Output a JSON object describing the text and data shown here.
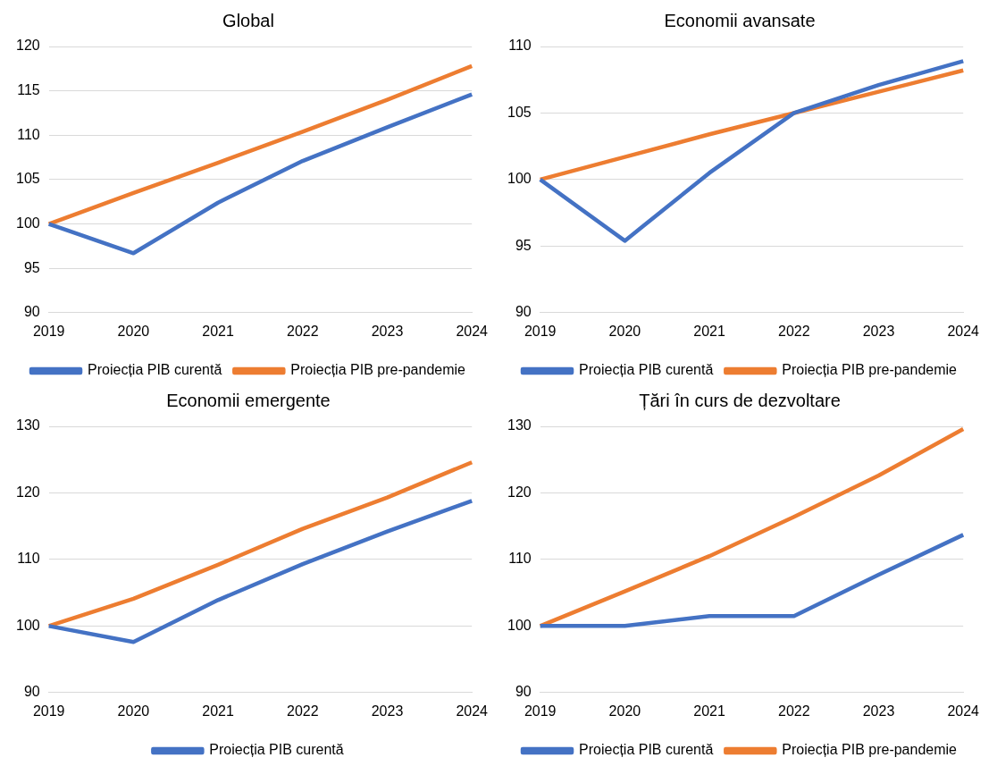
{
  "chart_data": [
    {
      "type": "line",
      "title": "Global",
      "categories": [
        "2019",
        "2020",
        "2021",
        "2022",
        "2023",
        "2024"
      ],
      "ylim": [
        90,
        120
      ],
      "yticks": [
        90,
        95,
        100,
        105,
        110,
        115,
        120
      ],
      "grid": "y",
      "legend": "bottom",
      "series": [
        {
          "name": "Proiecția PIB curentă",
          "color": "#4472c4",
          "values": [
            100,
            96.7,
            102.4,
            107.1,
            110.9,
            114.6
          ]
        },
        {
          "name": "Proiecția PIB pre-pandemie",
          "color": "#ed7d31",
          "values": [
            100,
            103.5,
            106.9,
            110.4,
            114.0,
            117.8
          ]
        }
      ]
    },
    {
      "type": "line",
      "title": "Economii avansate",
      "categories": [
        "2019",
        "2020",
        "2021",
        "2022",
        "2023",
        "2024"
      ],
      "ylim": [
        90,
        110
      ],
      "yticks": [
        90,
        95,
        100,
        105,
        110
      ],
      "grid": "y",
      "legend": "bottom",
      "series": [
        {
          "name": "Proiecția PIB curentă",
          "color": "#4472c4",
          "values": [
            100,
            95.4,
            100.5,
            105.0,
            107.1,
            108.9
          ]
        },
        {
          "name": "Proiecția PIB pre-pandemie",
          "color": "#ed7d31",
          "values": [
            100,
            101.7,
            103.4,
            105.0,
            106.6,
            108.2
          ]
        }
      ]
    },
    {
      "type": "line",
      "title": "Economii emergente",
      "categories": [
        "2019",
        "2020",
        "2021",
        "2022",
        "2023",
        "2024"
      ],
      "ylim": [
        90,
        130
      ],
      "yticks": [
        90,
        100,
        110,
        120,
        130
      ],
      "grid": "y",
      "legend": "bottom",
      "series": [
        {
          "name": "Proiecția PIB curentă",
          "color": "#4472c4",
          "values": [
            100,
            97.6,
            103.9,
            109.3,
            114.2,
            118.8
          ]
        },
        {
          "color": "#ed7d31",
          "values": [
            100,
            104.1,
            109.2,
            114.6,
            119.3,
            124.6
          ]
        }
      ]
    },
    {
      "type": "line",
      "title": "Țări în curs de dezvoltare",
      "categories": [
        "2019",
        "2020",
        "2021",
        "2022",
        "2023",
        "2024"
      ],
      "ylim": [
        90,
        130
      ],
      "yticks": [
        90,
        100,
        110,
        120,
        130
      ],
      "grid": "y",
      "legend": "bottom",
      "series": [
        {
          "name": "Proiecția PIB curentă",
          "color": "#4472c4",
          "values": [
            100,
            100,
            101.5,
            101.5,
            107.7,
            113.7
          ]
        },
        {
          "name": "Proiecția PIB pre-pandemie",
          "color": "#ed7d31",
          "values": [
            100,
            105.2,
            110.5,
            116.4,
            122.6,
            129.6
          ]
        }
      ]
    }
  ]
}
